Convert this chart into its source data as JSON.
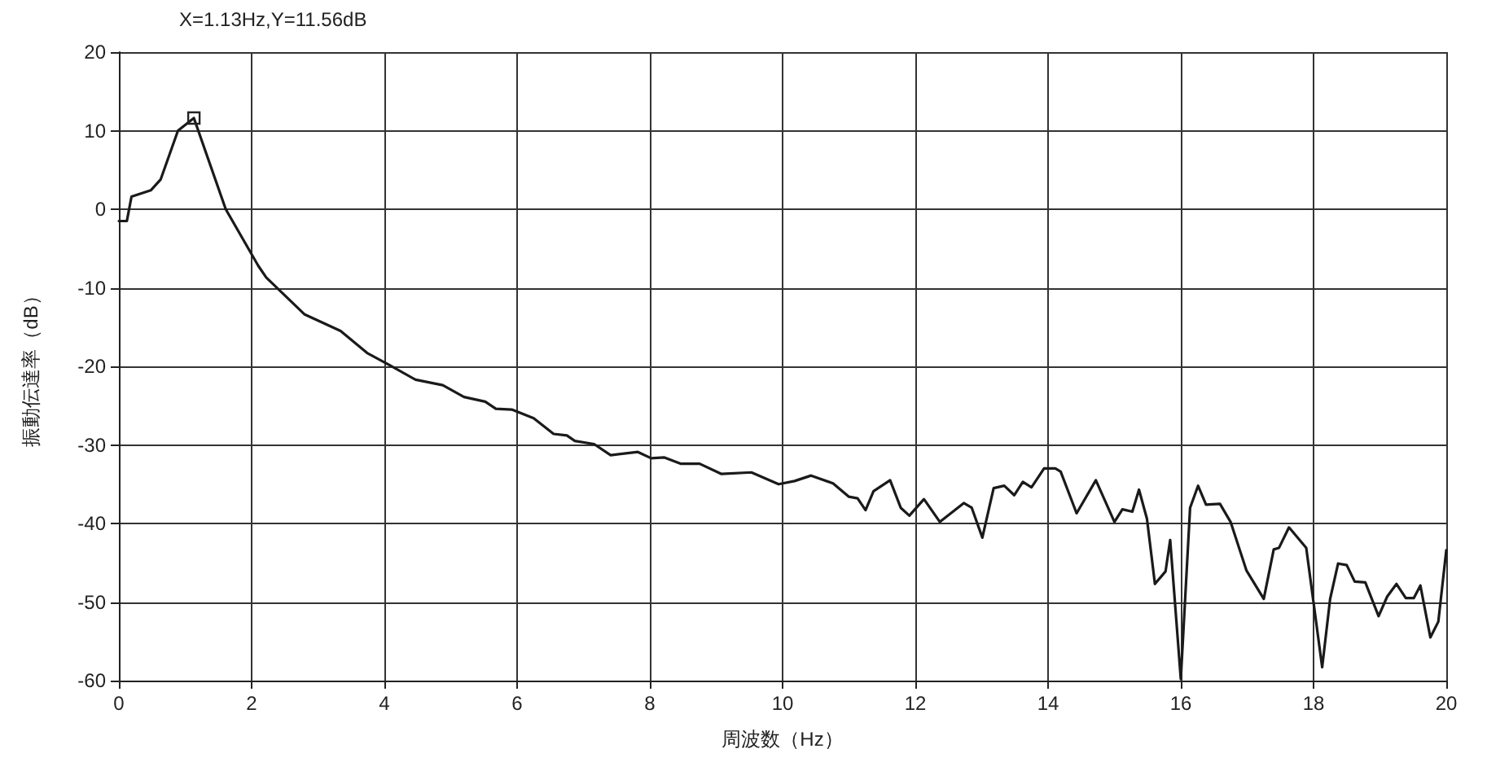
{
  "chart_data": {
    "type": "line",
    "xlabel": "周波数（Hz）",
    "ylabel": "振動伝達率（dB）",
    "annotations": [
      "X=1.13Hz,Y=11.56dB"
    ],
    "xlim": [
      0,
      20
    ],
    "xticks": [
      0,
      2,
      4,
      6,
      8,
      10,
      12,
      14,
      16,
      18,
      20
    ],
    "ylim": [
      -60,
      20
    ],
    "yticks": [
      -60,
      -50,
      -40,
      -30,
      -20,
      -10,
      0,
      10,
      20
    ],
    "grid": true,
    "marker": "none",
    "line_style": "solid",
    "series": [
      {
        "color": "#1a1a1a",
        "x": [
          0,
          0.12,
          0.19,
          0.48,
          0.63,
          0.89,
          1.13,
          1.61,
          2.1,
          2.22,
          2.8,
          3.34,
          3.74,
          4.07,
          4.47,
          4.88,
          5.2,
          5.52,
          5.68,
          5.92,
          6.25,
          6.55,
          6.75,
          6.87,
          7.16,
          7.41,
          7.82,
          8.02,
          8.22,
          8.47,
          8.75,
          9.08,
          9.53,
          9.94,
          10.18,
          10.43,
          10.76,
          11,
          11.13,
          11.25,
          11.37,
          11.62,
          11.78,
          11.91,
          12.13,
          12.37,
          12.73,
          12.85,
          13.01,
          13.18,
          13.34,
          13.49,
          13.62,
          13.75,
          13.94,
          14.11,
          14.19,
          14.43,
          14.72,
          15,
          15.12,
          15.27,
          15.37,
          15.49,
          15.61,
          15.77,
          15.84,
          16,
          16.14,
          16.26,
          16.38,
          16.59,
          16.75,
          16.99,
          17.25,
          17.4,
          17.48,
          17.63,
          17.89,
          18.13,
          18.25,
          18.37,
          18.5,
          18.62,
          18.78,
          18.98,
          19.11,
          19.25,
          19.39,
          19.51,
          19.61,
          19.76,
          19.88,
          20
        ],
        "values": [
          -1.5,
          -1.5,
          1.6,
          2.4,
          3.8,
          10,
          11.6,
          0,
          -7.2,
          -8.7,
          -13.4,
          -15.5,
          -18.3,
          -19.8,
          -21.7,
          -22.4,
          -23.9,
          -24.5,
          -25.4,
          -25.5,
          -26.6,
          -28.6,
          -28.8,
          -29.5,
          -29.9,
          -31.3,
          -30.9,
          -31.7,
          -31.6,
          -32.4,
          -32.4,
          -33.7,
          -33.5,
          -35,
          -34.6,
          -33.9,
          -34.9,
          -36.6,
          -36.8,
          -38.3,
          -35.9,
          -34.5,
          -38,
          -39,
          -36.9,
          -39.8,
          -37.4,
          -38,
          -41.8,
          -35.5,
          -35.2,
          -36.4,
          -34.7,
          -35.4,
          -33,
          -33,
          -33.4,
          -38.7,
          -34.5,
          -39.8,
          -38.2,
          -38.5,
          -35.7,
          -39.4,
          -47.7,
          -46.1,
          -42.1,
          -59.8,
          -38,
          -35.2,
          -37.6,
          -37.5,
          -39.8,
          -46,
          -49.6,
          -43.3,
          -43.1,
          -40.5,
          -43.1,
          -58.3,
          -49.6,
          -45.1,
          -45.3,
          -47.4,
          -47.5,
          -51.8,
          -49.3,
          -47.7,
          -49.5,
          -49.5,
          -47.9,
          -54.5,
          -52.5,
          -43.4
        ]
      }
    ]
  }
}
